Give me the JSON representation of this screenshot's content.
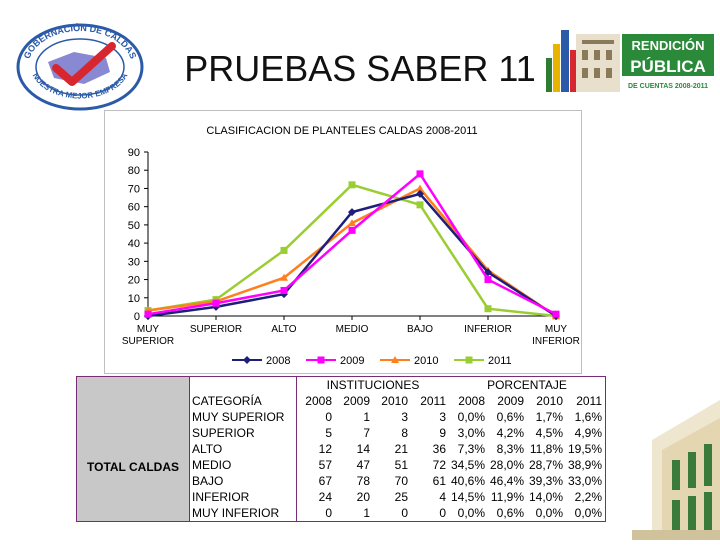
{
  "header": {
    "title": "PRUEBAS SABER 11",
    "logo_left_top_text": "GOBERNACIÓN DE CALDAS",
    "logo_left_bottom_text": "NUESTRA MEJOR EMPRESA",
    "logo_right_line1": "RENDICIÓN",
    "logo_right_line2": "PÚBLICA",
    "logo_right_line3": "DE CUENTAS 2008-2011"
  },
  "chart_data": {
    "type": "line",
    "title": "CLASIFICACION DE PLANTELES CALDAS 2008-2011",
    "categories": [
      "MUY SUPERIOR",
      "SUPERIOR",
      "ALTO",
      "MEDIO",
      "BAJO",
      "INFERIOR",
      "MUY INFERIOR"
    ],
    "category_lines": [
      [
        "MUY",
        "SUPERIOR"
      ],
      [
        "SUPERIOR"
      ],
      [
        "ALTO"
      ],
      [
        "MEDIO"
      ],
      [
        "BAJO"
      ],
      [
        "INFERIOR"
      ],
      [
        "MUY",
        "INFERIOR"
      ]
    ],
    "y_ticks": [
      "0",
      "10",
      "20",
      "30",
      "40",
      "50",
      "60",
      "70",
      "80",
      "90"
    ],
    "ylim": [
      0,
      90
    ],
    "legend_position": "bottom",
    "series": [
      {
        "name": "2008",
        "color": "#1f1f7a",
        "marker": "diamond",
        "values": [
          0,
          5,
          12,
          57,
          67,
          24,
          0
        ]
      },
      {
        "name": "2009",
        "color": "#ff00ff",
        "marker": "square",
        "values": [
          1,
          7,
          14,
          47,
          78,
          20,
          1
        ]
      },
      {
        "name": "2010",
        "color": "#ff7f1e",
        "marker": "triangle",
        "values": [
          3,
          8,
          21,
          51,
          70,
          25,
          0
        ]
      },
      {
        "name": "2011",
        "color": "#9acd32",
        "marker": "square",
        "values": [
          3,
          9,
          36,
          72,
          61,
          4,
          0
        ]
      }
    ]
  },
  "table": {
    "total_label": "TOTAL CALDAS",
    "category_header": "CATEGORÍA",
    "instituciones_header": "INSTITUCIONES",
    "porcentaje_header": "PORCENTAJE",
    "years": [
      "2008",
      "2009",
      "2010",
      "2011"
    ],
    "rows": [
      {
        "cat": "MUY SUPERIOR",
        "inst": [
          "0",
          "1",
          "3",
          "3"
        ],
        "pct": [
          "0,0%",
          "0,6%",
          "1,7%",
          "1,6%"
        ]
      },
      {
        "cat": "SUPERIOR",
        "inst": [
          "5",
          "7",
          "8",
          "9"
        ],
        "pct": [
          "3,0%",
          "4,2%",
          "4,5%",
          "4,9%"
        ]
      },
      {
        "cat": "ALTO",
        "inst": [
          "12",
          "14",
          "21",
          "36"
        ],
        "pct": [
          "7,3%",
          "8,3%",
          "11,8%",
          "19,5%"
        ]
      },
      {
        "cat": "MEDIO",
        "inst": [
          "57",
          "47",
          "51",
          "72"
        ],
        "pct": [
          "34,5%",
          "28,0%",
          "28,7%",
          "38,9%"
        ]
      },
      {
        "cat": "BAJO",
        "inst": [
          "67",
          "78",
          "70",
          "61"
        ],
        "pct": [
          "40,6%",
          "46,4%",
          "39,3%",
          "33,0%"
        ]
      },
      {
        "cat": "INFERIOR",
        "inst": [
          "24",
          "20",
          "25",
          "4"
        ],
        "pct": [
          "14,5%",
          "11,9%",
          "14,0%",
          "2,2%"
        ]
      },
      {
        "cat": "MUY INFERIOR",
        "inst": [
          "0",
          "1",
          "0",
          "0"
        ],
        "pct": [
          "0,0%",
          "0,6%",
          "0,0%",
          "0,0%"
        ]
      }
    ]
  },
  "colors": {
    "green": "#2e7d2e",
    "orange": "#e87722",
    "blue": "#2a5aa8",
    "red": "#d8262e",
    "table_border": "#7a2a7a"
  }
}
